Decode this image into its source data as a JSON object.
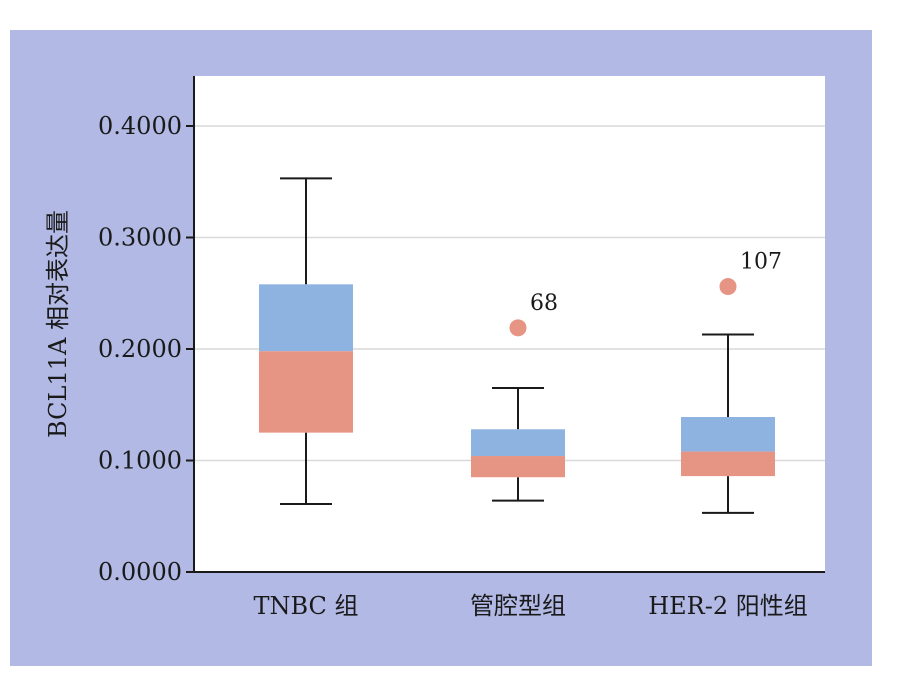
{
  "chart_data": {
    "type": "boxplot",
    "ylabel": "BCL11A 相对表达量",
    "ylim": [
      0,
      0.4
    ],
    "yticks": [
      0.0,
      0.1,
      0.2,
      0.3,
      0.4
    ],
    "ytick_labels": [
      "0.0000",
      "0.1000",
      "0.2000",
      "0.3000",
      "0.4000"
    ],
    "grid": true,
    "categories": [
      "TNBC 组",
      "管腔型组",
      "HER-2 阳性组"
    ],
    "boxes": [
      {
        "min": 0.061,
        "q1": 0.125,
        "median": 0.198,
        "q3": 0.258,
        "max": 0.353,
        "outliers": []
      },
      {
        "min": 0.064,
        "q1": 0.085,
        "median": 0.104,
        "q3": 0.128,
        "max": 0.165,
        "outliers": [
          {
            "value": 0.219,
            "label": "68"
          }
        ]
      },
      {
        "min": 0.053,
        "q1": 0.086,
        "median": 0.108,
        "q3": 0.139,
        "max": 0.213,
        "outliers": [
          {
            "value": 0.256,
            "label": "107"
          }
        ]
      }
    ],
    "colors": {
      "upper_box": "#8eb3e1",
      "lower_box": "#e69483",
      "outlier": "#e69483",
      "background": "#b1b9e4",
      "plot_area": "#ffffff",
      "grid": "#d9d9d9",
      "axis": "#1a1a1a"
    }
  }
}
